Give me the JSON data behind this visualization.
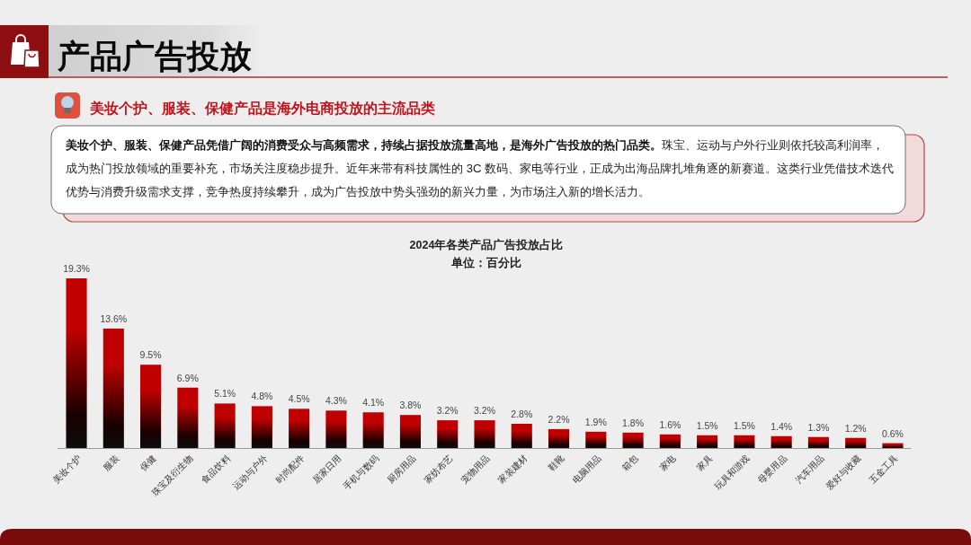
{
  "chart_data": {
    "type": "bar",
    "title": "2024年各类产品广告投放占比",
    "subtitle": "单位：百分比",
    "annotations": [
      "产品广告投放",
      "美妆个护、服装、保健产品是海外电商投放的主流品类",
      "**美妆个护、服装、保健产品凭借广阔的消费受众与高频需求，持续占据投放流量高地，是海外广告投放的热门品类。**珠宝、运动与户外行业则依托较高利润率，成为热门投放领域的重要补充，市场关注度稳步提升。近年来带有科技属性的 3C 数码、家电等行业，正成为出海品牌扎堆角逐的新赛道。这类行业凭借技术迭代优势与消费升级需求支撑，竞争热度持续攀升，成为广告投放中势头强劲的新兴力量，为市场注入新的增长活力。"
    ],
    "categories": [
      "美妆个护",
      "服装",
      "保健",
      "珠宝及衍生物",
      "食品饮料",
      "运动与户外",
      "时尚配件",
      "居家日用",
      "手机与数码",
      "厨房用品",
      "家纺布艺",
      "宠物用品",
      "家装建材",
      "鞋靴",
      "电脑用品",
      "箱包",
      "家电",
      "家具",
      "玩具和游戏",
      "母婴用品",
      "汽车用品",
      "爱好与收藏",
      "五金工具"
    ],
    "values": [
      19.3,
      13.6,
      9.5,
      6.9,
      5.1,
      4.8,
      4.5,
      4.3,
      4.1,
      3.8,
      3.2,
      3.2,
      2.8,
      2.2,
      1.9,
      1.8,
      1.6,
      1.5,
      1.5,
      1.4,
      1.3,
      1.2,
      0.6
    ],
    "value_labels": [
      "19.3%",
      "13.6%",
      "9.5%",
      "6.9%",
      "5.1%",
      "4.8%",
      "4.5%",
      "4.3%",
      "4.1%",
      "3.8%",
      "3.2%",
      "3.2%",
      "2.8%",
      "2.2%",
      "1.9%",
      "1.8%",
      "1.6%",
      "1.5%",
      "1.5%",
      "1.4%",
      "1.3%",
      "1.2%",
      "0.6%"
    ],
    "color": "#c00000"
  }
}
